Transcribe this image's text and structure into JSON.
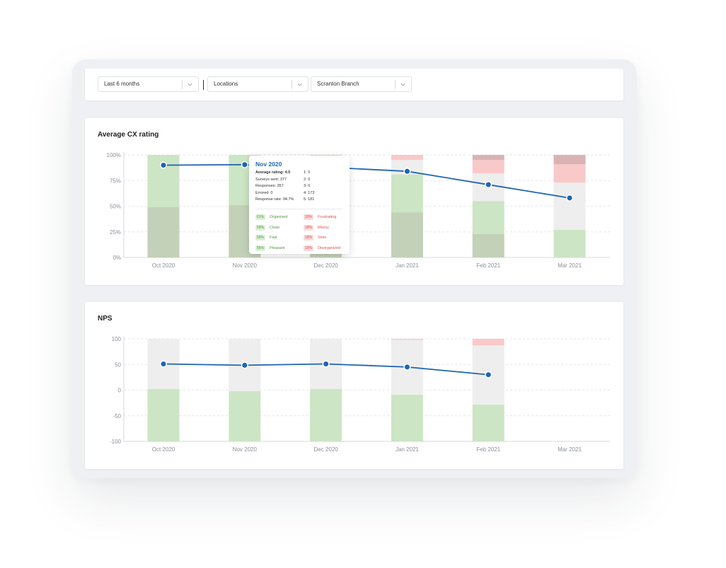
{
  "filters": [
    {
      "label": "Last 6 months"
    },
    {
      "label": "Locations"
    },
    {
      "label": "Scranton Branch"
    }
  ],
  "colors": {
    "positive": "#cce5c4",
    "positive_dark": "#c2d1b7",
    "neutral": "#eeeeee",
    "negative": "#f9c9c9",
    "negative_dark": "#d9b3b3",
    "line": "#1f65b2"
  },
  "chart_data": [
    {
      "type": "bar",
      "title": "Average CX rating",
      "categories": [
        "Oct 2020",
        "Nov 2020",
        "Dec 2020",
        "Jan 2021",
        "Feb 2021",
        "Mar 2021"
      ],
      "y_ticks": [
        "100%",
        "75%",
        "50%",
        "25%",
        "0%"
      ],
      "ylim": [
        0,
        100
      ],
      "stacked_series": [
        {
          "name": "",
          "color": "positive_dark",
          "values": [
            49,
            51,
            50,
            44,
            23,
            0
          ]
        },
        {
          "name": "",
          "color": "positive",
          "values": [
            51,
            49,
            50,
            37,
            32,
            27
          ]
        },
        {
          "name": "",
          "color": "neutral",
          "values": [
            0,
            0,
            0,
            14,
            27,
            46
          ]
        },
        {
          "name": "",
          "color": "negative",
          "values": [
            0,
            0,
            0,
            5,
            13,
            18
          ]
        },
        {
          "name": "",
          "color": "negative_dark",
          "values": [
            0,
            0,
            0,
            0,
            5,
            9
          ]
        }
      ],
      "line": {
        "name": "",
        "values": [
          90,
          90.5,
          88,
          84,
          71,
          58
        ]
      }
    },
    {
      "type": "bar",
      "title": "NPS",
      "categories": [
        "Oct 2020",
        "Nov 2020",
        "Dec 2020",
        "Jan 2021",
        "Feb 2021",
        "Mar 2021"
      ],
      "y_ticks": [
        "100",
        "50",
        "0",
        "-50",
        "-100"
      ],
      "ylim": [
        -100,
        100
      ],
      "stacked_series": [
        {
          "name": "",
          "color": "positive",
          "values": [
            102,
            98,
            102,
            91,
            72,
            0
          ]
        },
        {
          "name": "",
          "color": "neutral",
          "values": [
            98,
            102,
            98,
            107,
            115,
            0
          ]
        },
        {
          "name": "",
          "color": "negative",
          "values": [
            0,
            0,
            0,
            2,
            13,
            0
          ]
        }
      ],
      "line": {
        "name": "",
        "values": [
          51,
          48.5,
          51,
          45,
          30,
          null
        ]
      }
    }
  ],
  "tooltip": {
    "title": "Nov 2020",
    "stats": [
      "Average rating: 4.5",
      "Surveys sent: 377",
      "Responses: 357",
      "Errored: 0",
      "Response rate: 94.7%"
    ],
    "distribution": [
      "1: 0",
      "2: 0",
      "3: 0",
      "4: 173",
      "5: 181"
    ],
    "positive": [
      {
        "pct": "61%",
        "label": "Organized"
      },
      {
        "pct": "59%",
        "label": "Clean"
      },
      {
        "pct": "55%",
        "label": "Fast"
      },
      {
        "pct": "55%",
        "label": "Pleasant"
      }
    ],
    "negative": [
      {
        "pct": "20%",
        "label": "Frustrating"
      },
      {
        "pct": "18%",
        "label": "Messy"
      },
      {
        "pct": "18%",
        "label": "Slow"
      },
      {
        "pct": "15%",
        "label": "Disorganized"
      }
    ]
  }
}
